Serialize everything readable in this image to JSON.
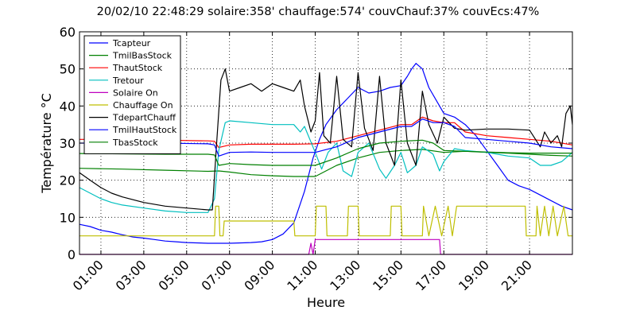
{
  "chart_data": {
    "type": "line",
    "title": "20/02/10 22:48:29  solaire:358'  chauffage:574'  couvChauf:37%  couvEcs:47%",
    "xlabel": "Heure",
    "ylabel": "Température °C",
    "xlim": [
      0,
      23
    ],
    "ylim": [
      0,
      60
    ],
    "grid": true,
    "legend_position": "top-left",
    "x_ticks": [
      {
        "value": 1,
        "label": "01:00"
      },
      {
        "value": 3,
        "label": "03:00"
      },
      {
        "value": 5,
        "label": "05:00"
      },
      {
        "value": 7,
        "label": "07:00"
      },
      {
        "value": 9,
        "label": "09:00"
      },
      {
        "value": 11,
        "label": "11:00"
      },
      {
        "value": 13,
        "label": "13:00"
      },
      {
        "value": 15,
        "label": "15:00"
      },
      {
        "value": 17,
        "label": "17:00"
      },
      {
        "value": 19,
        "label": "19:00"
      },
      {
        "value": 21,
        "label": "21:00"
      }
    ],
    "y_ticks": [
      0,
      10,
      20,
      30,
      40,
      50,
      60
    ],
    "series": [
      {
        "name": "Tcapteur",
        "color": "#0000ff",
        "points": [
          [
            0,
            8.1
          ],
          [
            0.5,
            7.5
          ],
          [
            1,
            6.5
          ],
          [
            1.5,
            6
          ],
          [
            2,
            5.3
          ],
          [
            2.5,
            4.7
          ],
          [
            3,
            4.4
          ],
          [
            3.5,
            4
          ],
          [
            4,
            3.6
          ],
          [
            4.5,
            3.4
          ],
          [
            5,
            3.2
          ],
          [
            6,
            3
          ],
          [
            7,
            3
          ],
          [
            8,
            3.2
          ],
          [
            8.5,
            3.4
          ],
          [
            9,
            4
          ],
          [
            9.5,
            5.5
          ],
          [
            10,
            8.5
          ],
          [
            10.5,
            17
          ],
          [
            10.9,
            26
          ],
          [
            11.2,
            31
          ],
          [
            11.5,
            35
          ],
          [
            12,
            39
          ],
          [
            12.5,
            42
          ],
          [
            13,
            45
          ],
          [
            13.5,
            43.5
          ],
          [
            14,
            44
          ],
          [
            14.5,
            45
          ],
          [
            15,
            45.5
          ],
          [
            15.3,
            48
          ],
          [
            15.5,
            50
          ],
          [
            15.7,
            51.5
          ],
          [
            16,
            50
          ],
          [
            16.3,
            45
          ],
          [
            16.7,
            41
          ],
          [
            17,
            38
          ],
          [
            17.5,
            37
          ],
          [
            18,
            35
          ],
          [
            18.5,
            32
          ],
          [
            19,
            28
          ],
          [
            19.5,
            24
          ],
          [
            20,
            20
          ],
          [
            20.5,
            18.5
          ],
          [
            21,
            17.5
          ],
          [
            21.5,
            16
          ],
          [
            22,
            14.5
          ],
          [
            22.5,
            13
          ],
          [
            23,
            12
          ]
        ]
      },
      {
        "name": "TmilBasStock",
        "color": "#008000",
        "points": [
          [
            0,
            23.2
          ],
          [
            2,
            23
          ],
          [
            4,
            22.7
          ],
          [
            6,
            22.4
          ],
          [
            6.5,
            22.5
          ],
          [
            7,
            22.2
          ],
          [
            8,
            21.5
          ],
          [
            9,
            21.2
          ],
          [
            10,
            21
          ],
          [
            11,
            21
          ],
          [
            11.5,
            22.5
          ],
          [
            12,
            24
          ],
          [
            13,
            26
          ],
          [
            14,
            27.5
          ],
          [
            15,
            28
          ],
          [
            16,
            28.3
          ],
          [
            17,
            27.5
          ],
          [
            18,
            27.8
          ],
          [
            19,
            27.5
          ],
          [
            20,
            27.3
          ],
          [
            21,
            27
          ],
          [
            22,
            26.7
          ],
          [
            23,
            26.5
          ]
        ]
      },
      {
        "name": "ThautStock",
        "color": "#ff0000",
        "points": [
          [
            0,
            31
          ],
          [
            2,
            31
          ],
          [
            4,
            30.8
          ],
          [
            6,
            30.6
          ],
          [
            6.3,
            30.5
          ],
          [
            6.5,
            28.8
          ],
          [
            7,
            29.5
          ],
          [
            8,
            29.7
          ],
          [
            9,
            29.7
          ],
          [
            10,
            29.7
          ],
          [
            11,
            29.8
          ],
          [
            12,
            30.5
          ],
          [
            13,
            32
          ],
          [
            14,
            33.5
          ],
          [
            15,
            35
          ],
          [
            15.5,
            35
          ],
          [
            16,
            37
          ],
          [
            16.5,
            36
          ],
          [
            17,
            35.5
          ],
          [
            17.5,
            35.5
          ],
          [
            18,
            33
          ],
          [
            19,
            32
          ],
          [
            20,
            31.5
          ],
          [
            21,
            31
          ],
          [
            22,
            30.5
          ],
          [
            23,
            29.5
          ]
        ]
      },
      {
        "name": "Tretour",
        "color": "#00bfbf",
        "points": [
          [
            0,
            18
          ],
          [
            0.5,
            16.5
          ],
          [
            1,
            15
          ],
          [
            1.5,
            14
          ],
          [
            2,
            13.3
          ],
          [
            3,
            12.5
          ],
          [
            4,
            11.7
          ],
          [
            5,
            11.3
          ],
          [
            5.5,
            11.3
          ],
          [
            6,
            11.3
          ],
          [
            6.3,
            15
          ],
          [
            6.5,
            28
          ],
          [
            6.8,
            35.5
          ],
          [
            7,
            36
          ],
          [
            8,
            35.5
          ],
          [
            9,
            35
          ],
          [
            10,
            35
          ],
          [
            10.3,
            33
          ],
          [
            10.5,
            34.5
          ],
          [
            11,
            27.5
          ],
          [
            11.3,
            23
          ],
          [
            11.6,
            27.5
          ],
          [
            12,
            30
          ],
          [
            12.3,
            22.5
          ],
          [
            12.7,
            21
          ],
          [
            13,
            27.5
          ],
          [
            13.5,
            30
          ],
          [
            14,
            23
          ],
          [
            14.3,
            20.5
          ],
          [
            14.7,
            24
          ],
          [
            15,
            27.5
          ],
          [
            15.3,
            22
          ],
          [
            15.7,
            24
          ],
          [
            16,
            29
          ],
          [
            16.5,
            27
          ],
          [
            16.8,
            22.5
          ],
          [
            17,
            25
          ],
          [
            17.5,
            28.5
          ],
          [
            18,
            28
          ],
          [
            19,
            27.5
          ],
          [
            20,
            26.5
          ],
          [
            21,
            26
          ],
          [
            21.5,
            24
          ],
          [
            22,
            24
          ],
          [
            22.5,
            25
          ],
          [
            23,
            27.5
          ]
        ]
      },
      {
        "name": "Solaire On",
        "color": "#bf00bf",
        "points": [
          [
            0,
            0
          ],
          [
            10.7,
            0
          ],
          [
            10.8,
            3
          ],
          [
            10.9,
            0
          ],
          [
            11,
            4
          ],
          [
            16.8,
            4
          ],
          [
            16.85,
            0
          ],
          [
            23,
            0
          ]
        ]
      },
      {
        "name": "Chauffage On",
        "color": "#bfbf00",
        "points": [
          [
            0,
            5
          ],
          [
            6.3,
            5
          ],
          [
            6.35,
            13
          ],
          [
            6.5,
            13
          ],
          [
            6.55,
            5
          ],
          [
            6.7,
            5
          ],
          [
            6.75,
            9
          ],
          [
            10,
            9
          ],
          [
            10.05,
            5
          ],
          [
            11,
            5
          ],
          [
            11.05,
            13
          ],
          [
            11.5,
            13
          ],
          [
            11.55,
            5
          ],
          [
            12.5,
            5
          ],
          [
            12.55,
            13
          ],
          [
            13,
            13
          ],
          [
            13.05,
            5
          ],
          [
            14.5,
            5
          ],
          [
            14.55,
            13
          ],
          [
            15,
            13
          ],
          [
            15.05,
            5
          ],
          [
            16,
            5
          ],
          [
            16.05,
            13
          ],
          [
            16.3,
            5
          ],
          [
            16.6,
            13
          ],
          [
            16.9,
            5
          ],
          [
            17.2,
            13
          ],
          [
            17.4,
            5
          ],
          [
            17.6,
            13
          ],
          [
            20.8,
            13
          ],
          [
            20.85,
            5
          ],
          [
            21.3,
            5
          ],
          [
            21.35,
            13
          ],
          [
            21.5,
            5
          ],
          [
            21.7,
            13
          ],
          [
            21.9,
            5
          ],
          [
            22.1,
            13
          ],
          [
            22.3,
            5
          ],
          [
            22.6,
            13
          ],
          [
            22.8,
            5
          ],
          [
            23,
            5
          ]
        ]
      },
      {
        "name": "TdepartChauff",
        "color": "#000000",
        "points": [
          [
            0,
            22
          ],
          [
            0.5,
            20
          ],
          [
            1,
            18
          ],
          [
            1.5,
            16.5
          ],
          [
            2,
            15.5
          ],
          [
            3,
            14
          ],
          [
            4,
            13
          ],
          [
            5,
            12.5
          ],
          [
            6,
            12
          ],
          [
            6.2,
            12
          ],
          [
            6.4,
            30
          ],
          [
            6.6,
            47
          ],
          [
            6.8,
            50
          ],
          [
            7,
            44
          ],
          [
            7.5,
            45
          ],
          [
            8,
            46
          ],
          [
            8.5,
            44
          ],
          [
            9,
            46
          ],
          [
            9.5,
            45
          ],
          [
            10,
            44
          ],
          [
            10.3,
            47
          ],
          [
            10.5,
            40
          ],
          [
            10.8,
            33
          ],
          [
            11,
            36
          ],
          [
            11.2,
            49
          ],
          [
            11.4,
            32
          ],
          [
            11.7,
            30
          ],
          [
            12,
            48
          ],
          [
            12.3,
            31
          ],
          [
            12.7,
            29
          ],
          [
            13,
            49
          ],
          [
            13.3,
            34
          ],
          [
            13.7,
            28
          ],
          [
            14,
            48
          ],
          [
            14.3,
            30
          ],
          [
            14.7,
            24
          ],
          [
            15,
            47
          ],
          [
            15.3,
            30
          ],
          [
            15.7,
            24
          ],
          [
            16,
            44
          ],
          [
            16.3,
            35
          ],
          [
            16.7,
            30
          ],
          [
            17,
            37
          ],
          [
            17.5,
            34
          ],
          [
            18,
            33.5
          ],
          [
            19,
            33.8
          ],
          [
            20,
            33.8
          ],
          [
            21,
            33.5
          ],
          [
            21.5,
            29
          ],
          [
            21.7,
            33
          ],
          [
            22,
            30
          ],
          [
            22.3,
            32
          ],
          [
            22.5,
            29
          ],
          [
            22.7,
            38
          ],
          [
            22.9,
            40
          ],
          [
            23,
            35
          ]
        ]
      },
      {
        "name": "TmilHautStock",
        "color": "#0000ff",
        "points": [
          [
            0,
            30
          ],
          [
            2,
            30
          ],
          [
            4,
            30
          ],
          [
            6,
            29.8
          ],
          [
            6.3,
            29.5
          ],
          [
            6.5,
            26.5
          ],
          [
            7,
            27.5
          ],
          [
            8,
            27.6
          ],
          [
            9,
            27.5
          ],
          [
            10,
            27.5
          ],
          [
            11,
            27.5
          ],
          [
            12,
            29
          ],
          [
            13,
            31.5
          ],
          [
            14,
            33
          ],
          [
            15,
            34.5
          ],
          [
            15.5,
            34.5
          ],
          [
            16,
            36.5
          ],
          [
            16.5,
            35.5
          ],
          [
            17,
            35.5
          ],
          [
            17.5,
            34.5
          ],
          [
            18,
            31.5
          ],
          [
            19,
            31
          ],
          [
            20,
            30.5
          ],
          [
            21,
            30
          ],
          [
            22,
            29
          ],
          [
            23,
            28.5
          ]
        ]
      },
      {
        "name": "TbasStock",
        "color": "#007f00",
        "points": [
          [
            0,
            27.2
          ],
          [
            2,
            27.1
          ],
          [
            4,
            27
          ],
          [
            6,
            27
          ],
          [
            6.3,
            26.8
          ],
          [
            6.5,
            24
          ],
          [
            7,
            24.5
          ],
          [
            8,
            24.2
          ],
          [
            9,
            24
          ],
          [
            10,
            24
          ],
          [
            11,
            24
          ],
          [
            12,
            26
          ],
          [
            13,
            28.5
          ],
          [
            14,
            30
          ],
          [
            15,
            30.5
          ],
          [
            16,
            30.8
          ],
          [
            16.5,
            30
          ],
          [
            17,
            28
          ],
          [
            18,
            27.8
          ],
          [
            19,
            27.6
          ],
          [
            20,
            27.4
          ],
          [
            21,
            27.3
          ],
          [
            22,
            27.3
          ],
          [
            23,
            27.3
          ]
        ]
      }
    ]
  }
}
